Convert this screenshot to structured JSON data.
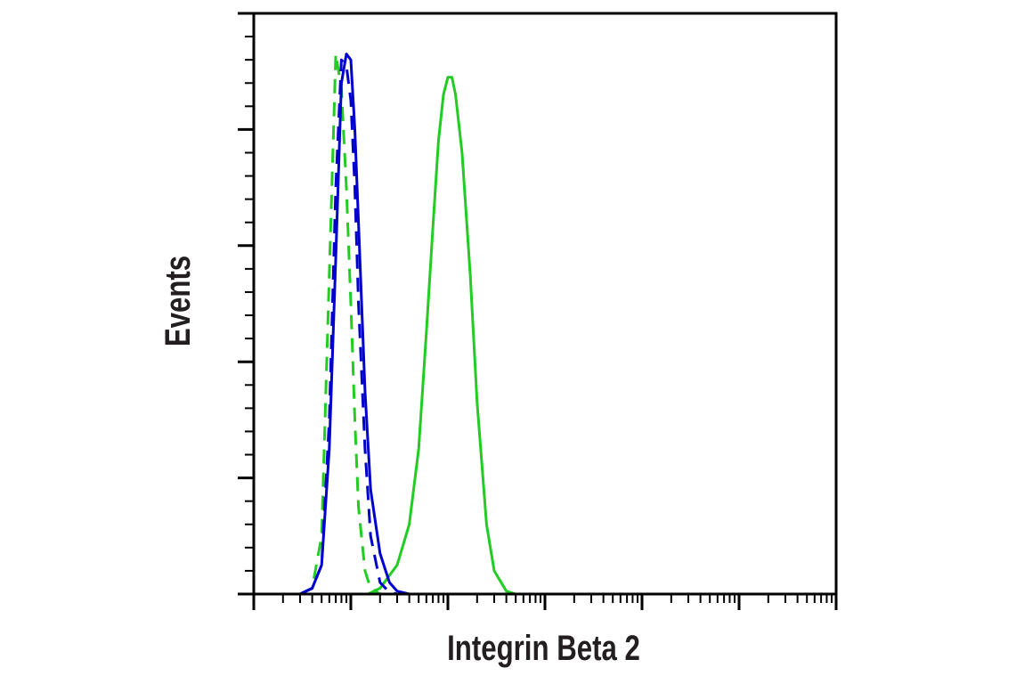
{
  "chart_data": {
    "type": "line",
    "title": "",
    "xlabel": "Integrin Beta 2",
    "ylabel": "Events",
    "x_scale": "log",
    "xlim": [
      10,
      10000000
    ],
    "ylim": [
      0,
      1
    ],
    "grid": false,
    "legend": "none",
    "series": [
      {
        "color": "#0000cc",
        "style": "solid",
        "x": [
          30,
          40,
          50,
          60,
          70,
          80,
          90,
          100,
          110,
          120,
          140,
          160,
          200,
          250,
          300,
          400,
          1000,
          1000000,
          10000000
        ],
        "y": [
          0,
          0.01,
          0.05,
          0.25,
          0.58,
          0.88,
          0.93,
          0.92,
          0.8,
          0.64,
          0.35,
          0.18,
          0.07,
          0.02,
          0.005,
          0,
          0,
          0,
          0
        ]
      },
      {
        "color": "#0000cc",
        "style": "dashed",
        "x": [
          30,
          40,
          50,
          60,
          70,
          80,
          90,
          100,
          110,
          120,
          140,
          160,
          200,
          250,
          300,
          1000000,
          10000000
        ],
        "y": [
          0,
          0.01,
          0.05,
          0.3,
          0.7,
          0.92,
          0.91,
          0.85,
          0.7,
          0.5,
          0.25,
          0.1,
          0.02,
          0.003,
          0,
          0,
          0
        ]
      },
      {
        "color": "#22cc22",
        "style": "dashed",
        "x": [
          30,
          40,
          50,
          60,
          70,
          80,
          90,
          100,
          110,
          120,
          140,
          160,
          200,
          250,
          1000000,
          10000000
        ],
        "y": [
          0,
          0.01,
          0.1,
          0.55,
          0.93,
          0.87,
          0.7,
          0.5,
          0.3,
          0.15,
          0.04,
          0.01,
          0,
          0,
          0,
          0
        ]
      },
      {
        "color": "#22cc22",
        "style": "solid",
        "x": [
          10,
          150,
          200,
          300,
          400,
          500,
          600,
          700,
          800,
          900,
          1000,
          1100,
          1200,
          1400,
          1700,
          2000,
          2500,
          3000,
          4000,
          5000,
          10000000
        ],
        "y": [
          0,
          0,
          0.01,
          0.05,
          0.12,
          0.25,
          0.45,
          0.63,
          0.78,
          0.86,
          0.89,
          0.89,
          0.86,
          0.76,
          0.55,
          0.33,
          0.12,
          0.04,
          0.005,
          0,
          0
        ]
      }
    ]
  }
}
